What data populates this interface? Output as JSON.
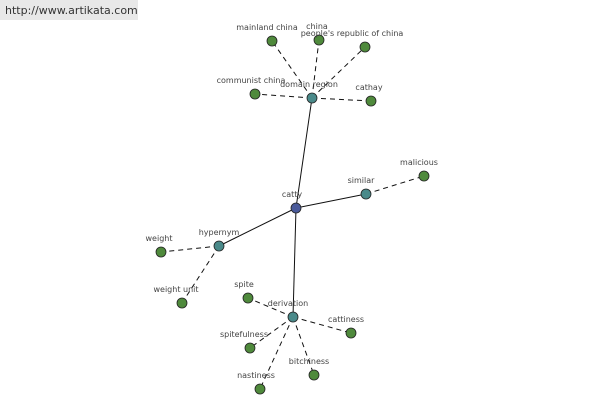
{
  "watermark": "http://www.artikata.com",
  "nodes": [
    {
      "label": "catty"
    },
    {
      "label": "domain region"
    },
    {
      "label": "similar"
    },
    {
      "label": "hypernym"
    },
    {
      "label": "derivation"
    },
    {
      "label": "mainland china"
    },
    {
      "label": "china"
    },
    {
      "label": "people's republic of china"
    },
    {
      "label": "communist china"
    },
    {
      "label": "cathay"
    },
    {
      "label": "malicious"
    },
    {
      "label": "weight"
    },
    {
      "label": "weight unit"
    },
    {
      "label": "spite"
    },
    {
      "label": "cattiness"
    },
    {
      "label": "spitefulness"
    },
    {
      "label": "bitchiness"
    },
    {
      "label": "nastiness"
    }
  ]
}
